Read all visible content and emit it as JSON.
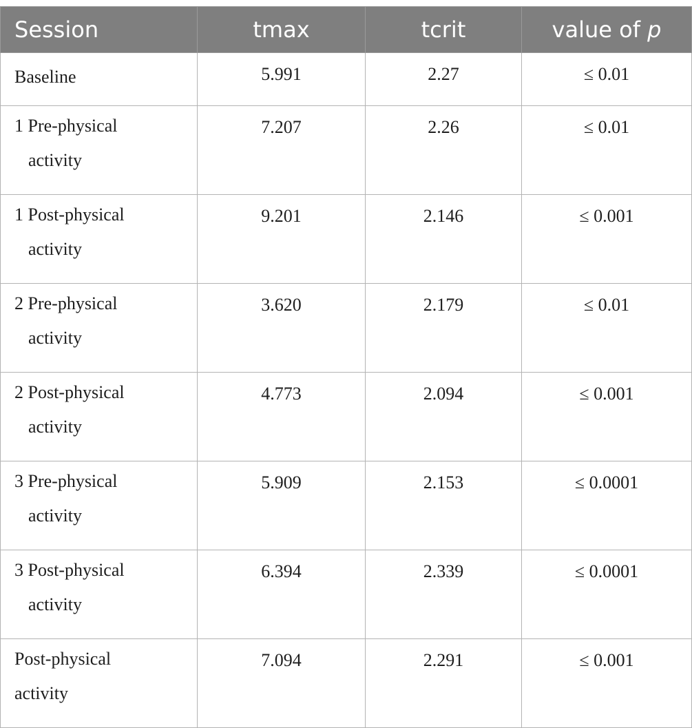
{
  "table": {
    "headers": {
      "session": "Session",
      "tmax": "tmax",
      "tcrit": "tcrit",
      "pvalue_prefix": "value of ",
      "pvalue_italic": "p"
    },
    "rows": [
      {
        "session_line1": "Baseline",
        "session_line2": "",
        "tmax": "5.991",
        "tcrit": "2.27",
        "p": "≤ 0.01"
      },
      {
        "session_line1": "1 Pre-physical",
        "session_line2": "activity",
        "tmax": "7.207",
        "tcrit": "2.26",
        "p": "≤ 0.01"
      },
      {
        "session_line1": "1 Post-physical",
        "session_line2": "activity",
        "tmax": "9.201",
        "tcrit": "2.146",
        "p": "≤ 0.001"
      },
      {
        "session_line1": "2 Pre-physical",
        "session_line2": "activity",
        "tmax": "3.620",
        "tcrit": "2.179",
        "p": "≤ 0.01"
      },
      {
        "session_line1": "2 Post-physical",
        "session_line2": "activity",
        "tmax": "4.773",
        "tcrit": "2.094",
        "p": "≤ 0.001"
      },
      {
        "session_line1": "3 Pre-physical",
        "session_line2": "activity",
        "tmax": "5.909",
        "tcrit": "2.153",
        "p": "≤ 0.0001"
      },
      {
        "session_line1": "3 Post-physical",
        "session_line2": "activity",
        "tmax": "6.394",
        "tcrit": "2.339",
        "p": "≤ 0.0001"
      },
      {
        "session_line1": "Post-physical",
        "session_line2": "activity",
        "tmax": "7.094",
        "tcrit": "2.291",
        "p": "≤ 0.001"
      }
    ]
  }
}
